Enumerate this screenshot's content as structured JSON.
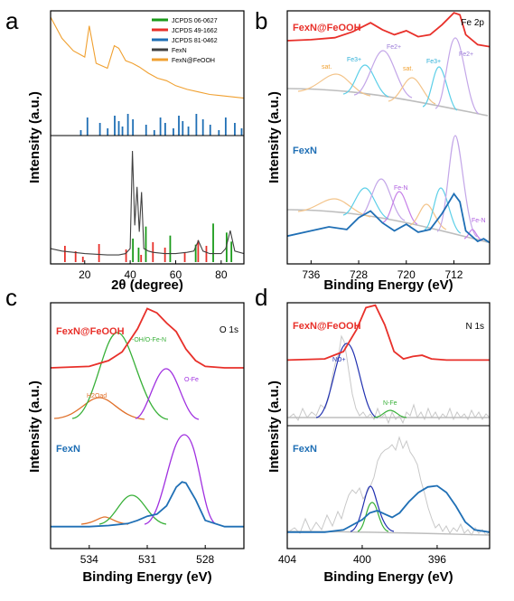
{
  "panels": [
    {
      "letter": "a",
      "x_label": "2θ (degree)",
      "y_label": "Intensity (a.u.)",
      "legend": [
        {
          "label": "JCPDS 06-0627",
          "color": "#1a9a1a"
        },
        {
          "label": "JCPDS 49-1662",
          "color": "#e8302a"
        },
        {
          "label": "JCPDS 81-0462",
          "color": "#1f6fb5"
        },
        {
          "label": "FexN",
          "color": "#404040"
        },
        {
          "label": "FexN@FeOOH",
          "color": "#f0a030"
        }
      ]
    },
    {
      "letter": "b",
      "x_label": "Binding Energy (eV)",
      "y_label": "Intensity (a.u.)",
      "region": "Fe 2p",
      "samples": [
        "FexN@FeOOH",
        "FexN"
      ],
      "annotations": [
        "sat.",
        "Fe3+",
        "Fe2+",
        "sat.",
        "Fe3+",
        "Fe2+",
        "Fe-N",
        "Fe-N"
      ]
    },
    {
      "letter": "c",
      "x_label": "Binding Energy (eV)",
      "y_label": "Intensity (a.u.)",
      "region": "O 1s",
      "samples": [
        "FexN@FeOOH",
        "FexN"
      ],
      "annotations": [
        "H2Oad",
        "-OH/O-Fe-N",
        "O-Fe"
      ]
    },
    {
      "letter": "d",
      "x_label": "Binding Energy (eV)",
      "y_label": "Intensity (a.u.)",
      "region": "N 1s",
      "samples": [
        "FexN@FeOOH",
        "FexN"
      ],
      "annotations": [
        "NO+",
        "N-Fe"
      ]
    }
  ],
  "chart_data": [
    {
      "type": "line",
      "panel": "a",
      "xlabel": "2θ (degree)",
      "ylabel": "Intensity (a.u.)",
      "xlim": [
        5,
        90
      ],
      "xticks": [
        20,
        40,
        60,
        80
      ],
      "y_ticks_shown": false,
      "legend_position": "top-right",
      "series": [
        {
          "name": "FexN@FeOOH",
          "color": "#f0a030",
          "x": [
            5,
            10,
            15,
            20,
            22,
            25,
            30,
            33,
            35,
            38,
            41,
            44,
            48,
            52,
            56,
            60,
            65,
            70,
            75,
            80,
            85,
            90
          ],
          "y": [
            0.95,
            0.78,
            0.68,
            0.63,
            0.88,
            0.58,
            0.54,
            0.72,
            0.7,
            0.6,
            0.58,
            0.55,
            0.5,
            0.46,
            0.44,
            0.4,
            0.37,
            0.35,
            0.33,
            0.32,
            0.31,
            0.3
          ]
        },
        {
          "name": "FexN",
          "color": "#404040",
          "x": [
            5,
            10,
            20,
            30,
            35,
            38,
            40,
            41,
            42,
            43,
            44,
            45,
            46,
            48,
            50,
            55,
            60,
            65,
            68,
            70,
            72,
            75,
            80,
            82,
            84,
            86,
            90
          ],
          "y": [
            0.12,
            0.1,
            0.08,
            0.07,
            0.07,
            0.08,
            0.12,
            0.88,
            0.3,
            0.6,
            0.25,
            0.56,
            0.12,
            0.1,
            0.09,
            0.08,
            0.08,
            0.09,
            0.1,
            0.18,
            0.1,
            0.08,
            0.08,
            0.12,
            0.26,
            0.1,
            0.08
          ]
        }
      ],
      "reference_lines": [
        {
          "name": "JCPDS 81-0462",
          "color": "#1f6fb5",
          "positions": [
            18.3,
            21.2,
            26.7,
            30.1,
            33.2,
            35.0,
            36.6,
            39.0,
            41.2,
            47.0,
            50.6,
            53.3,
            55.4,
            59.0,
            61.4,
            63.1,
            65.6,
            69.1,
            72.0,
            75.2,
            79.0,
            82.0,
            86.0,
            89.0
          ]
        },
        {
          "name": "JCPDS 06-0627",
          "color": "#1a9a1a",
          "positions": [
            41.2,
            43.7,
            46.9,
            57.6,
            68.8,
            76.5,
            82.4,
            84.5
          ]
        },
        {
          "name": "JCPDS 49-1662",
          "color": "#e8302a",
          "positions": [
            11.3,
            16.0,
            19.2,
            26.3,
            38.2,
            44.8,
            50.0,
            55.3,
            64.0,
            69.9,
            73.5
          ]
        }
      ]
    },
    {
      "type": "line",
      "panel": "b",
      "xlabel": "Binding Energy (eV)",
      "xlim": [
        740,
        706
      ],
      "xticks": [
        736,
        728,
        720,
        712
      ],
      "reversed_x": true,
      "series": [
        {
          "name": "FexN@FeOOH envelope",
          "color": "#e8302a",
          "x": [
            740,
            736,
            732,
            729,
            726,
            724,
            722,
            720,
            718,
            716,
            714,
            712,
            711,
            710,
            708,
            706
          ],
          "y": [
            0.7,
            0.71,
            0.73,
            0.79,
            0.88,
            0.81,
            0.76,
            0.8,
            0.74,
            0.76,
            0.86,
            0.98,
            0.96,
            0.76,
            0.66,
            0.64
          ]
        },
        {
          "name": "FexN envelope",
          "color": "#1f6fb5",
          "x": [
            740,
            736,
            733,
            730,
            728,
            726,
            724,
            722,
            720,
            718,
            716,
            714,
            712,
            711,
            710,
            708,
            707,
            706
          ],
          "y": [
            0.06,
            0.1,
            0.13,
            0.11,
            0.2,
            0.25,
            0.16,
            0.1,
            0.15,
            0.09,
            0.11,
            0.23,
            0.38,
            0.32,
            0.1,
            0.02,
            0.04,
            0.01
          ]
        }
      ]
    },
    {
      "type": "line",
      "panel": "c",
      "xlabel": "Binding Energy (eV)",
      "xlim": [
        536,
        526
      ],
      "xticks": [
        534,
        531,
        528
      ],
      "reversed_x": true,
      "series": [
        {
          "name": "FexN@FeOOH envelope",
          "color": "#e8302a",
          "x": [
            536,
            534,
            533,
            532.3,
            531.5,
            531,
            530.5,
            530,
            529.5,
            529,
            528.5,
            528,
            527,
            526
          ],
          "y": [
            0.55,
            0.56,
            0.6,
            0.66,
            0.82,
            0.96,
            0.93,
            0.86,
            0.8,
            0.68,
            0.6,
            0.56,
            0.55,
            0.55
          ]
        },
        {
          "name": "FexN envelope",
          "color": "#1f6fb5",
          "x": [
            536,
            534,
            533,
            532,
            531.5,
            531,
            530.5,
            530,
            529.5,
            529.2,
            529,
            528.5,
            528,
            527,
            526
          ],
          "y": [
            0.02,
            0.02,
            0.03,
            0.05,
            0.08,
            0.12,
            0.14,
            0.22,
            0.4,
            0.45,
            0.44,
            0.28,
            0.08,
            0.02,
            0.02
          ]
        }
      ]
    },
    {
      "type": "line",
      "panel": "d",
      "xlabel": "Binding Energy (eV)",
      "xlim": [
        404,
        393.2
      ],
      "xticks": [
        404,
        400,
        396
      ],
      "reversed_x": true,
      "series": [
        {
          "name": "FexN@FeOOH envelope",
          "color": "#e8302a",
          "x": [
            404,
            402,
            401,
            400.3,
            399.8,
            399.3,
            398.8,
            398.3,
            397.8,
            397.3,
            396.8,
            396.3,
            395.5,
            394,
            393.2
          ],
          "y": [
            0.53,
            0.54,
            0.6,
            0.78,
            0.96,
            0.98,
            0.82,
            0.6,
            0.54,
            0.56,
            0.57,
            0.54,
            0.53,
            0.53,
            0.53
          ]
        },
        {
          "name": "FexN envelope",
          "color": "#1f6fb5",
          "x": [
            404,
            402,
            401,
            400,
            399.6,
            399.2,
            398.8,
            398.4,
            398,
            397.5,
            397,
            396.5,
            396,
            395.5,
            395,
            394.5,
            394,
            393.2
          ],
          "y": [
            0.05,
            0.05,
            0.07,
            0.16,
            0.22,
            0.24,
            0.21,
            0.18,
            0.22,
            0.32,
            0.4,
            0.45,
            0.46,
            0.4,
            0.28,
            0.14,
            0.07,
            0.05
          ]
        }
      ]
    }
  ]
}
